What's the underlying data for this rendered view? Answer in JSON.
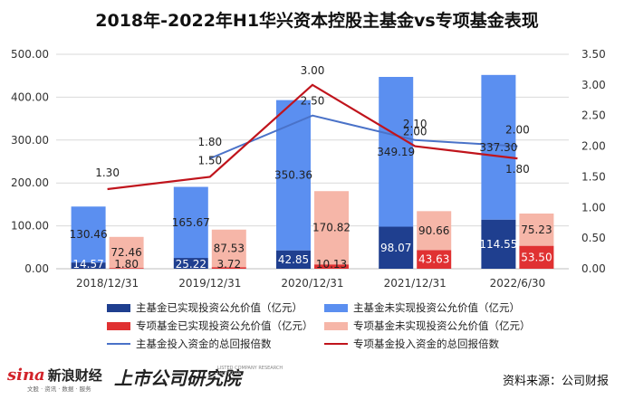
{
  "page": {
    "title": "2018年-2022年H1华兴资本控股主基金vs专项基金表现",
    "source": "资料来源：公司财报",
    "logo_text": "新浪财经",
    "logo_mark": "sina",
    "logo_sub": "文股 · 资讯 · 数据 · 服务",
    "research_logo": "上市公司研究院",
    "research_sub": "LISTED COMPANY RESEARCH INSTITUTE"
  },
  "chart_data": {
    "type": "bar",
    "categories": [
      "2018/12/31",
      "2019/12/31",
      "2020/12/31",
      "2021/12/31",
      "2022/6/30"
    ],
    "ylim": [
      0,
      500
    ],
    "yticks": [
      "0.00",
      "100.00",
      "200.00",
      "300.00",
      "400.00",
      "500.00"
    ],
    "y2lim": [
      0,
      3.5
    ],
    "y2ticks": [
      "0.00",
      "0.50",
      "1.00",
      "1.50",
      "2.00",
      "2.50",
      "3.00",
      "3.50"
    ],
    "grid": true,
    "legend_position": "bottom",
    "series": [
      {
        "name": "主基金已实现投资公允价值（亿元）",
        "type": "bar",
        "stack": "main",
        "color": "#1f3f8f",
        "values": [
          14.57,
          25.22,
          42.85,
          98.07,
          114.55
        ],
        "labels": [
          "14.57",
          "25.22",
          "42.85",
          "98.07",
          "114.55"
        ]
      },
      {
        "name": "主基金未实现投资公允价值（亿元）",
        "type": "bar",
        "stack": "main",
        "color": "#5b8ff0",
        "values": [
          130.46,
          165.67,
          350.36,
          349.19,
          337.3
        ],
        "labels": [
          "130.46",
          "165.67",
          "350.36",
          "349.19",
          "337.30"
        ]
      },
      {
        "name": "专项基金已实现投资公允价值（亿元）",
        "type": "bar",
        "stack": "special",
        "color": "#e03132",
        "values": [
          1.8,
          3.72,
          10.13,
          43.63,
          53.5
        ],
        "labels": [
          "1.80",
          "3.72",
          "10.13",
          "43.63",
          "53.50"
        ]
      },
      {
        "name": "专项基金未实现投资公允价值（亿元）",
        "type": "bar",
        "stack": "special",
        "color": "#f6b6a8",
        "values": [
          72.46,
          87.53,
          170.82,
          90.66,
          75.23
        ],
        "labels": [
          "72.46",
          "87.53",
          "170.82",
          "90.66",
          "75.23"
        ]
      },
      {
        "name": "主基金投入资金的总回报倍数",
        "type": "line",
        "axis": "right",
        "color": "#4a72c8",
        "values": [
          null,
          1.8,
          2.5,
          2.1,
          2.0
        ],
        "labels": [
          "",
          "1.80",
          "2.50",
          "2.10",
          "2.00"
        ]
      },
      {
        "name": "专项基金投入资金的总回报倍数",
        "type": "line",
        "axis": "right",
        "color": "#c0141c",
        "values": [
          1.3,
          1.5,
          3.0,
          2.0,
          1.8
        ],
        "labels": [
          "1.30",
          "1.50",
          "3.00",
          "2.00",
          "1.80"
        ]
      }
    ]
  }
}
